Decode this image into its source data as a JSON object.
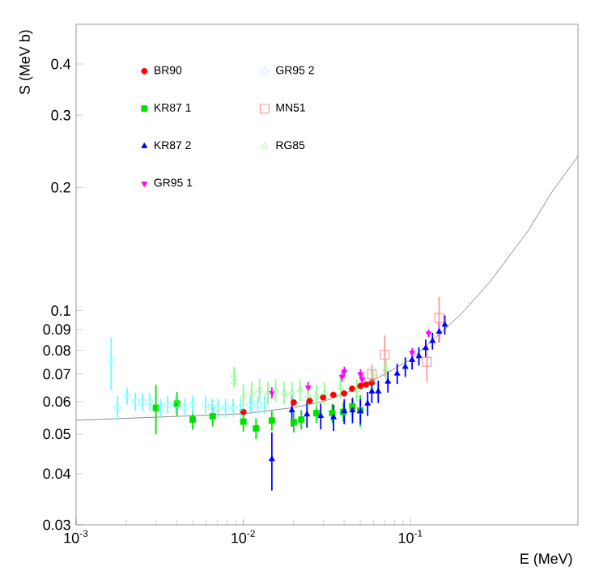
{
  "chart_data": {
    "type": "scatter",
    "xlabel": "E (MeV)",
    "ylabel": "S (MeV b)",
    "log": "xy",
    "xlim": [
      0.001,
      1
    ],
    "ylim": [
      0.03,
      0.5
    ],
    "xticks": [
      {
        "value": 0.001,
        "label": "10$^{-3}$"
      },
      {
        "value": 0.01,
        "label": "10$^{-2}$"
      },
      {
        "value": 0.1,
        "label": "10$^{-1}$"
      }
    ],
    "yticks": [
      0.03,
      0.04,
      0.05,
      0.06,
      0.07,
      0.08,
      0.09,
      0.1,
      0.2,
      0.3,
      0.4
    ],
    "legend": "top left",
    "series": [
      {
        "type": "line",
        "color": "#707070",
        "marker": "none",
        "x": [
          0.001,
          0.01,
          0.02,
          0.03,
          0.05,
          0.07,
          0.1,
          0.15,
          0.2,
          0.3,
          0.5,
          0.7,
          1
        ],
        "values": [
          0.054,
          0.056,
          0.058,
          0.06,
          0.065,
          0.07,
          0.076,
          0.088,
          0.098,
          0.118,
          0.156,
          0.195,
          0.238
        ]
      },
      {
        "name": "BR90",
        "color": "#ff0000",
        "marker": "circle",
        "x": [
          0.01,
          0.02,
          0.0249,
          0.03,
          0.0345,
          0.04,
          0.0447,
          0.0501,
          0.0542,
          0.0586
        ],
        "values": [
          0.0566,
          0.0597,
          0.0602,
          0.0614,
          0.0623,
          0.0628,
          0.0645,
          0.0655,
          0.066,
          0.0668
        ]
      },
      {
        "name": "KR87 1",
        "color": "#00e000",
        "marker": "square",
        "x": [
          0.003,
          0.00401,
          0.00498,
          0.00655,
          0.01,
          0.0119,
          0.0148,
          0.02,
          0.0222,
          0.0273,
          0.034,
          0.0396,
          0.0449,
          0.05
        ],
        "values": [
          0.0579,
          0.0593,
          0.0542,
          0.0552,
          0.0536,
          0.0516,
          0.0539,
          0.0534,
          0.0542,
          0.0562,
          0.0562,
          0.0566,
          0.0584,
          0.0571
        ],
        "errors": [
          0.008,
          0.004,
          0.003,
          0.003,
          0.003,
          0.003,
          0.003,
          0.003,
          0.003,
          0.003,
          0.003,
          0.003,
          0.003,
          0.005
        ]
      },
      {
        "name": "KR87 2",
        "color": "#0000ff",
        "marker": "triangle",
        "x": [
          0.0148,
          0.0195,
          0.024,
          0.029,
          0.0346,
          0.0401,
          0.0449,
          0.0501,
          0.0553,
          0.0586,
          0.064,
          0.0731,
          0.0831,
          0.0929,
          0.102,
          0.112,
          0.123,
          0.135,
          0.148,
          0.16
        ],
        "values": [
          0.0434,
          0.0571,
          0.0558,
          0.0553,
          0.0549,
          0.0568,
          0.0571,
          0.0568,
          0.0593,
          0.0635,
          0.0635,
          0.0671,
          0.0702,
          0.0729,
          0.0758,
          0.0774,
          0.081,
          0.0843,
          0.0888,
          0.0924
        ],
        "errors": [
          0.007,
          0.005,
          0.004,
          0.004,
          0.004,
          0.004,
          0.004,
          0.004,
          0.004,
          0.004,
          0.004,
          0.004,
          0.004,
          0.004,
          0.004,
          0.004,
          0.004,
          0.004,
          0.005,
          0.005
        ]
      },
      {
        "name": "GR95 1",
        "color": "#ff00ff",
        "marker": "triangle-down",
        "x": [
          0.0148,
          0.0244,
          0.0389,
          0.0401,
          0.0501,
          0.0513,
          0.102,
          0.128
        ],
        "values": [
          0.063,
          0.065,
          0.069,
          0.071,
          0.07,
          0.068,
          0.079,
          0.088
        ],
        "errors": [
          0.002,
          0.002,
          0.002,
          0.002,
          0.002,
          0.002,
          0.002,
          0.002
        ]
      },
      {
        "name": "GR95 2",
        "color": "#66ffff",
        "marker": "circle-open",
        "x": [
          0.00162,
          0.00177,
          0.00202,
          0.00226,
          0.00249,
          0.00276,
          0.00321,
          0.00353,
          0.00394,
          0.00448,
          0.00498,
          0.00594,
          0.0065,
          0.00705,
          0.00783,
          0.00869,
          0.00963,
          0.011,
          0.0122,
          0.0134
        ],
        "values": [
          0.075,
          0.058,
          0.062,
          0.06,
          0.06,
          0.06,
          0.058,
          0.059,
          0.059,
          0.058,
          0.059,
          0.059,
          0.058,
          0.058,
          0.058,
          0.058,
          0.058,
          0.059,
          0.059,
          0.059
        ],
        "errors": [
          0.011,
          0.004,
          0.003,
          0.003,
          0.003,
          0.003,
          0.003,
          0.003,
          0.003,
          0.003,
          0.003,
          0.003,
          0.003,
          0.003,
          0.003,
          0.003,
          0.003,
          0.003,
          0.003,
          0.003
        ]
      },
      {
        "name": "MN51",
        "color": "#ff9999",
        "marker": "square-open",
        "x": [
          0.0586,
          0.07,
          0.125,
          0.148
        ],
        "values": [
          0.07,
          0.078,
          0.075,
          0.096
        ],
        "errors": [
          0.004,
          0.009,
          0.008,
          0.012
        ]
      },
      {
        "name": "RG85",
        "color": "#88ff88",
        "marker": "triangle-open",
        "x": [
          0.0087,
          0.0088,
          0.01,
          0.0112,
          0.0125,
          0.014,
          0.0156,
          0.0175,
          0.0195,
          0.0218,
          0.0244,
          0.0273,
          0.0305,
          0.0381,
          0.0476,
          0.0596,
          0.0711
        ],
        "values": [
          0.0696,
          0.067,
          0.062,
          0.063,
          0.064,
          0.063,
          0.064,
          0.063,
          0.063,
          0.064,
          0.062,
          0.062,
          0.063,
          0.065,
          0.064,
          0.068,
          0.072
        ],
        "errors": [
          null,
          [
            0.065,
            0.073
          ],
          0.004,
          0.004,
          0.004,
          0.004,
          0.004,
          0.004,
          0.004,
          0.004,
          0.004,
          0.004,
          0.004,
          0.004,
          0.004,
          0.004,
          0.004
        ]
      }
    ]
  }
}
